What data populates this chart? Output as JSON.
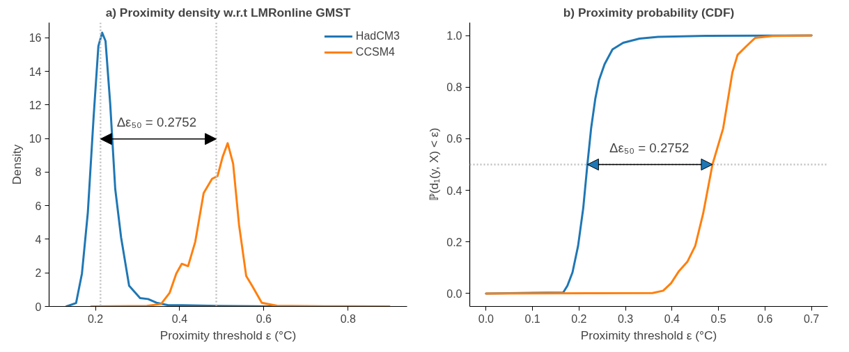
{
  "chart_data": [
    {
      "type": "line",
      "title": "a) Proximity density w.r.t LMRonline GMST",
      "xlabel": "Proximity threshold ε (°C)",
      "ylabel": "Density",
      "xlim": [
        0.09,
        0.94
      ],
      "ylim": [
        0,
        16.9
      ],
      "xticks": [
        0.2,
        0.4,
        0.6,
        0.8
      ],
      "yticks": [
        0,
        2,
        4,
        6,
        8,
        10,
        12,
        14,
        16
      ],
      "grid": false,
      "legend": "top right",
      "series": [
        {
          "name": "HadCM3",
          "color": "#1f77b4",
          "x": [
            0.131,
            0.154,
            0.168,
            0.182,
            0.196,
            0.207,
            0.216,
            0.224,
            0.235,
            0.247,
            0.261,
            0.28,
            0.306,
            0.325,
            0.345,
            0.373,
            0.407,
            0.49,
            0.63,
            0.895
          ],
          "values": [
            0,
            0.2,
            1.96,
            5.6,
            11.4,
            15.5,
            16.3,
            15.8,
            12.1,
            7.0,
            4.1,
            1.23,
            0.5,
            0.44,
            0.22,
            0.07,
            0.07,
            0.03,
            0,
            0
          ]
        },
        {
          "name": "CCSM4",
          "color": "#ff7f0e",
          "x": [
            0.19,
            0.322,
            0.356,
            0.376,
            0.392,
            0.405,
            0.42,
            0.437,
            0.457,
            0.477,
            0.49,
            0.502,
            0.514,
            0.527,
            0.541,
            0.558,
            0.572,
            0.595,
            0.631,
            0.744,
            0.898
          ],
          "values": [
            0,
            0.03,
            0.15,
            0.8,
            1.96,
            2.54,
            2.4,
            3.85,
            6.75,
            7.6,
            7.76,
            8.9,
            9.72,
            8.5,
            4.86,
            1.81,
            1.23,
            0.22,
            0.04,
            0.01,
            0
          ]
        }
      ],
      "ref_lines": [
        {
          "axis": "x",
          "value": 0.212,
          "label": null,
          "color": "#bfbfbf",
          "line_style": "dotted"
        },
        {
          "axis": "x",
          "value": 0.487,
          "label": null,
          "color": "#bfbfbf",
          "line_style": "dotted"
        }
      ],
      "annotations": [
        "Δε₅₀ =  0.2752"
      ]
    },
    {
      "type": "line",
      "title": "b) Proximity probability (CDF)",
      "xlabel": "Proximity threshold ε (°C)",
      "ylabel": "ℙ(d₁(y, X) < ε)",
      "xlim": [
        -0.035,
        0.735
      ],
      "ylim": [
        -0.05,
        1.05
      ],
      "xticks": [
        {
          "value": 0,
          "label": "0.0"
        },
        {
          "value": 0.1,
          "label": "0.1"
        },
        {
          "value": 0.2,
          "label": "0.2"
        },
        {
          "value": 0.3,
          "label": "0.3"
        },
        {
          "value": 0.4,
          "label": "0.4"
        },
        {
          "value": 0.5,
          "label": "0.5"
        },
        {
          "value": 0.6,
          "label": "0.6"
        },
        {
          "value": 0.7,
          "label": "0.7"
        }
      ],
      "yticks": [
        {
          "value": 0,
          "label": "0.0"
        },
        {
          "value": 0.2,
          "label": "0.2"
        },
        {
          "value": 0.4,
          "label": "0.4"
        },
        {
          "value": 0.6,
          "label": "0.6"
        },
        {
          "value": 0.8,
          "label": "0.8"
        },
        {
          "value": 1,
          "label": "1.0"
        }
      ],
      "grid": false,
      "series": [
        {
          "color": "#1f77b4",
          "x": [
            0,
            0.166,
            0.175,
            0.186,
            0.198,
            0.209,
            0.218,
            0.226,
            0.235,
            0.243,
            0.255,
            0.272,
            0.295,
            0.33,
            0.37,
            0.473,
            0.7
          ],
          "values": [
            0,
            0.004,
            0.03,
            0.082,
            0.185,
            0.33,
            0.5,
            0.64,
            0.755,
            0.827,
            0.889,
            0.946,
            0.972,
            0.988,
            0.995,
            0.999,
            1
          ]
        },
        {
          "color": "#ff7f0e",
          "x": [
            0,
            0.358,
            0.381,
            0.398,
            0.415,
            0.433,
            0.45,
            0.467,
            0.487,
            0.51,
            0.53,
            0.541,
            0.559,
            0.579,
            0.616,
            0.7
          ],
          "values": [
            0,
            0.002,
            0.011,
            0.04,
            0.087,
            0.123,
            0.185,
            0.31,
            0.5,
            0.64,
            0.858,
            0.925,
            0.957,
            0.991,
            0.998,
            1
          ]
        }
      ],
      "ref_lines": [
        {
          "axis": "y",
          "value": 0.5,
          "label": null,
          "color": "#bfbfbf",
          "line_style": "dotted"
        }
      ],
      "annotations": [
        {
          "text": "Δε₅₀ =  0.2752",
          "x": 0.355,
          "y": 0.5
        }
      ]
    }
  ]
}
